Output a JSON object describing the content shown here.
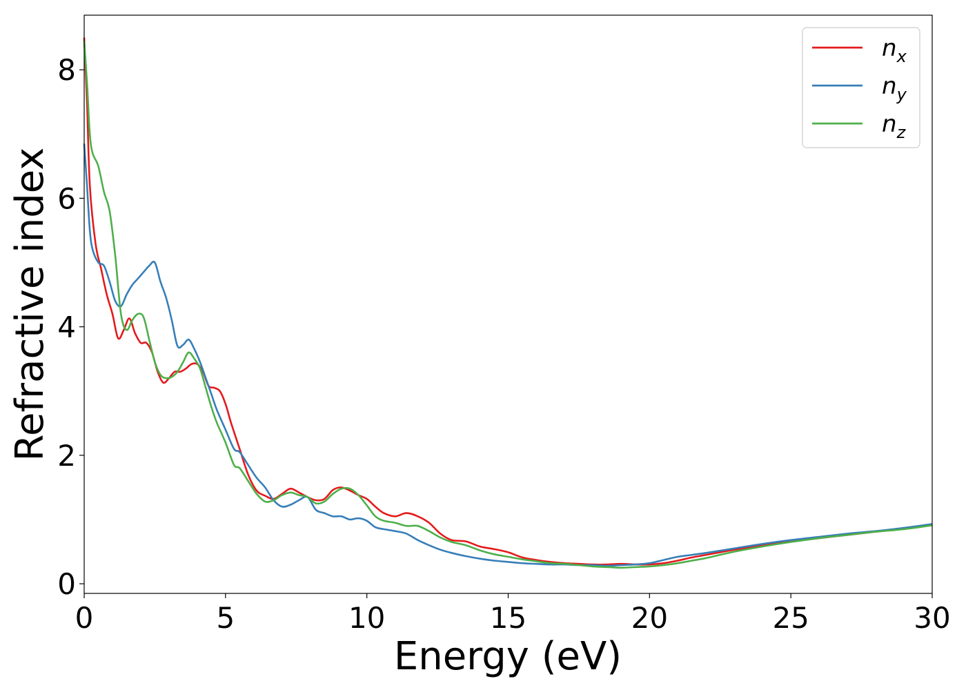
{
  "chart_data": {
    "type": "line",
    "xlabel": "Energy (eV)",
    "ylabel": "Refractive index",
    "xlim": [
      0,
      30
    ],
    "ylim": [
      -0.15,
      8.85
    ],
    "xticks": [
      0,
      5,
      10,
      15,
      20,
      25,
      30
    ],
    "yticks": [
      0,
      2,
      4,
      6,
      8
    ],
    "grid": false,
    "legend": "top-right",
    "series": [
      {
        "name": "n",
        "subscript": "x",
        "color": "#e41a1c",
        "x": [
          0.0,
          0.1,
          0.2,
          0.4,
          0.6,
          0.8,
          1.0,
          1.2,
          1.4,
          1.6,
          1.8,
          2.0,
          2.2,
          2.4,
          2.6,
          2.8,
          3.0,
          3.2,
          3.4,
          3.6,
          3.8,
          4.0,
          4.2,
          4.4,
          4.6,
          4.8,
          5.0,
          5.2,
          5.5,
          5.8,
          6.1,
          6.4,
          6.7,
          7.0,
          7.3,
          7.6,
          7.9,
          8.2,
          8.5,
          8.8,
          9.1,
          9.4,
          9.7,
          10.0,
          10.3,
          10.6,
          11.0,
          11.4,
          11.8,
          12.2,
          12.6,
          13.0,
          13.5,
          14.0,
          14.5,
          15.0,
          15.5,
          16.0,
          16.5,
          17.0,
          17.5,
          18.0,
          18.5,
          19.0,
          19.5,
          20.0,
          20.5,
          21.0,
          21.5,
          22.0,
          23.0,
          24.0,
          25.0,
          26.0,
          27.0,
          28.0,
          29.0,
          30.0
        ],
        "values": [
          8.5,
          7.5,
          6.2,
          5.3,
          4.9,
          4.5,
          4.2,
          3.82,
          3.95,
          4.13,
          3.9,
          3.75,
          3.75,
          3.6,
          3.3,
          3.13,
          3.2,
          3.3,
          3.3,
          3.35,
          3.42,
          3.42,
          3.3,
          3.08,
          3.05,
          3.0,
          2.8,
          2.5,
          2.1,
          1.7,
          1.45,
          1.37,
          1.32,
          1.4,
          1.48,
          1.42,
          1.35,
          1.3,
          1.32,
          1.46,
          1.5,
          1.45,
          1.38,
          1.32,
          1.2,
          1.1,
          1.05,
          1.1,
          1.05,
          0.95,
          0.78,
          0.68,
          0.66,
          0.58,
          0.54,
          0.49,
          0.41,
          0.37,
          0.34,
          0.32,
          0.31,
          0.3,
          0.3,
          0.31,
          0.3,
          0.3,
          0.32,
          0.36,
          0.41,
          0.45,
          0.53,
          0.6,
          0.66,
          0.71,
          0.76,
          0.81,
          0.86,
          0.92
        ]
      },
      {
        "name": "n",
        "subscript": "y",
        "color": "#377eb8",
        "x": [
          0.0,
          0.1,
          0.2,
          0.3,
          0.5,
          0.7,
          0.9,
          1.1,
          1.3,
          1.5,
          1.7,
          1.9,
          2.1,
          2.3,
          2.5,
          2.7,
          2.9,
          3.1,
          3.3,
          3.5,
          3.7,
          3.9,
          4.1,
          4.3,
          4.5,
          4.7,
          5.0,
          5.3,
          5.5,
          5.8,
          6.1,
          6.4,
          6.7,
          7.0,
          7.3,
          7.6,
          7.9,
          8.2,
          8.5,
          8.8,
          9.1,
          9.4,
          9.7,
          10.0,
          10.3,
          10.6,
          11.0,
          11.4,
          11.8,
          12.2,
          12.6,
          13.0,
          13.5,
          14.0,
          14.5,
          15.0,
          15.5,
          16.0,
          16.5,
          17.0,
          17.5,
          18.0,
          18.5,
          19.0,
          19.5,
          20.0,
          20.5,
          21.0,
          21.5,
          22.0,
          23.0,
          24.0,
          25.0,
          26.0,
          27.0,
          28.0,
          29.0,
          30.0
        ],
        "values": [
          6.85,
          6.2,
          5.5,
          5.2,
          5.0,
          4.95,
          4.7,
          4.4,
          4.32,
          4.5,
          4.65,
          4.75,
          4.85,
          4.95,
          5.0,
          4.7,
          4.45,
          4.1,
          3.7,
          3.72,
          3.8,
          3.65,
          3.45,
          3.2,
          2.95,
          2.7,
          2.4,
          2.1,
          2.05,
          1.85,
          1.65,
          1.5,
          1.3,
          1.2,
          1.23,
          1.3,
          1.35,
          1.15,
          1.1,
          1.05,
          1.05,
          1.0,
          1.02,
          0.98,
          0.88,
          0.85,
          0.82,
          0.78,
          0.68,
          0.6,
          0.53,
          0.48,
          0.43,
          0.39,
          0.36,
          0.34,
          0.32,
          0.31,
          0.3,
          0.3,
          0.29,
          0.29,
          0.28,
          0.29,
          0.3,
          0.32,
          0.37,
          0.42,
          0.45,
          0.48,
          0.55,
          0.62,
          0.68,
          0.73,
          0.78,
          0.82,
          0.87,
          0.93
        ]
      },
      {
        "name": "n",
        "subscript": "z",
        "color": "#4daf4a",
        "x": [
          0.0,
          0.1,
          0.2,
          0.3,
          0.5,
          0.7,
          0.9,
          1.1,
          1.3,
          1.5,
          1.7,
          1.9,
          2.1,
          2.3,
          2.5,
          2.7,
          2.9,
          3.1,
          3.3,
          3.5,
          3.7,
          3.9,
          4.1,
          4.3,
          4.5,
          4.7,
          5.0,
          5.3,
          5.5,
          5.8,
          6.1,
          6.4,
          6.7,
          7.0,
          7.3,
          7.6,
          7.9,
          8.2,
          8.5,
          8.8,
          9.1,
          9.4,
          9.7,
          10.0,
          10.3,
          10.6,
          11.0,
          11.4,
          11.8,
          12.2,
          12.6,
          13.0,
          13.5,
          14.0,
          14.5,
          15.0,
          15.5,
          16.0,
          16.5,
          17.0,
          17.5,
          18.0,
          18.5,
          19.0,
          19.5,
          20.0,
          20.5,
          21.0,
          21.5,
          22.0,
          23.0,
          24.0,
          25.0,
          26.0,
          27.0,
          28.0,
          29.0,
          30.0
        ],
        "values": [
          8.45,
          7.8,
          7.0,
          6.7,
          6.5,
          6.1,
          5.8,
          5.1,
          4.2,
          3.95,
          4.1,
          4.2,
          4.15,
          3.8,
          3.45,
          3.25,
          3.2,
          3.22,
          3.3,
          3.45,
          3.6,
          3.5,
          3.35,
          3.05,
          2.75,
          2.5,
          2.2,
          1.85,
          1.8,
          1.6,
          1.4,
          1.28,
          1.3,
          1.38,
          1.42,
          1.38,
          1.35,
          1.25,
          1.28,
          1.4,
          1.48,
          1.48,
          1.38,
          1.22,
          1.05,
          0.98,
          0.95,
          0.9,
          0.9,
          0.82,
          0.72,
          0.65,
          0.6,
          0.52,
          0.46,
          0.42,
          0.38,
          0.35,
          0.32,
          0.31,
          0.29,
          0.27,
          0.26,
          0.25,
          0.26,
          0.27,
          0.29,
          0.32,
          0.36,
          0.4,
          0.5,
          0.58,
          0.65,
          0.71,
          0.76,
          0.81,
          0.85,
          0.91
        ]
      }
    ]
  }
}
